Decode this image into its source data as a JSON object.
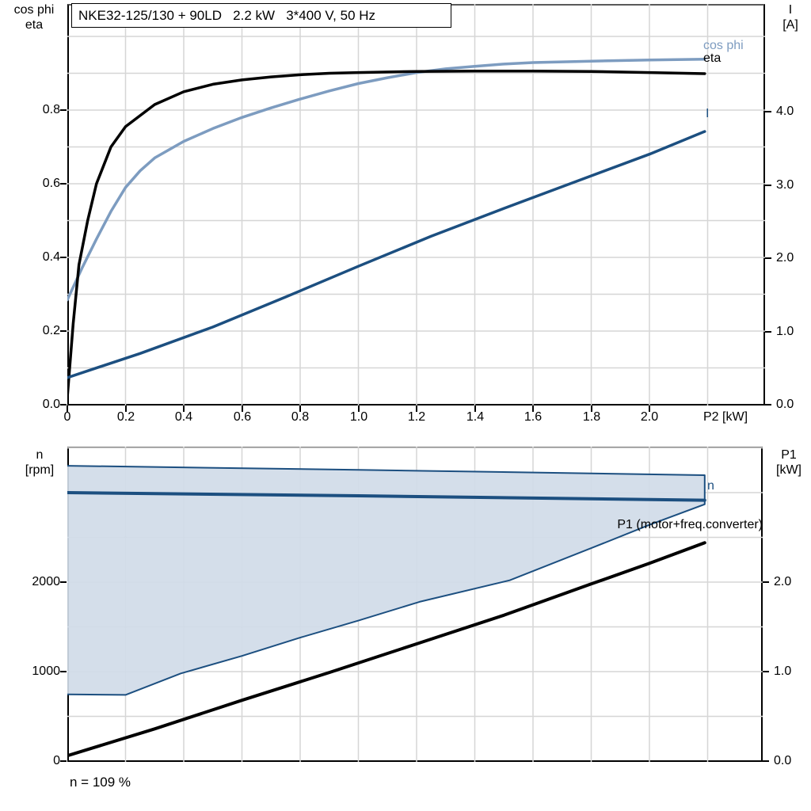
{
  "panel_title": "NKE32-125/130 + 90LD   2.2 kW   3*400 V, 50 Hz",
  "colors": {
    "cos_phi": "#7d9cc0",
    "eta": "#000000",
    "current": "#1c4f80",
    "speed_band_fill": "#d0dbe8",
    "speed_band_border": "#1c4f80",
    "p1_line": "#000000",
    "grid": "#d6d6d6",
    "frame_top": "#595959",
    "axis": "#000000"
  },
  "top_chart": {
    "left_axis_title": [
      "cos phi",
      "eta"
    ],
    "right_axis_title": [
      "I",
      "[A]"
    ],
    "x_axis_title": "P2 [kW]",
    "legend": {
      "cos_phi": "cos phi",
      "eta": "eta",
      "current": "I"
    }
  },
  "bottom_chart": {
    "left_axis_title": [
      "n",
      "[rpm]"
    ],
    "right_axis_title": [
      "P1",
      "[kW]"
    ],
    "series_label_n": "n",
    "series_label_p1": "P1 (motor+freq.converter)",
    "caption": "n = 109 %"
  },
  "chart_data": [
    {
      "type": "line",
      "title": "NKE32-125/130 + 90LD   2.2 kW   3*400 V, 50 Hz",
      "xlabel": "P2 [kW]",
      "x_range": [
        0,
        2.4
      ],
      "x_ticks": [
        {
          "v": 0,
          "label": "0"
        },
        {
          "v": 0.2,
          "label": "0.2"
        },
        {
          "v": 0.4,
          "label": "0.4"
        },
        {
          "v": 0.6,
          "label": "0.6"
        },
        {
          "v": 0.8,
          "label": "0.8"
        },
        {
          "v": 1.0,
          "label": "1.0"
        },
        {
          "v": 1.2,
          "label": "1.2"
        },
        {
          "v": 1.4,
          "label": "1.4"
        },
        {
          "v": 1.6,
          "label": "1.6"
        },
        {
          "v": 1.8,
          "label": "1.8"
        },
        {
          "v": 2.0,
          "label": "2.0"
        }
      ],
      "x_grid_step": 0.2,
      "left_axis": {
        "label": "cos phi / eta",
        "range": [
          0,
          1.088
        ],
        "grid_step": 0.1,
        "ticks": [
          {
            "v": 0.0,
            "label": "0.0"
          },
          {
            "v": 0.2,
            "label": "0.2"
          },
          {
            "v": 0.4,
            "label": "0.4"
          },
          {
            "v": 0.6,
            "label": "0.6"
          },
          {
            "v": 0.8,
            "label": "0.8"
          }
        ]
      },
      "right_axis": {
        "label": "I [A]",
        "range": [
          0,
          5.47
        ],
        "ticks": [
          {
            "v": 0.0,
            "label": "0.0"
          },
          {
            "v": 1.0,
            "label": "1.0"
          },
          {
            "v": 2.0,
            "label": "2.0"
          },
          {
            "v": 3.0,
            "label": "3.0"
          },
          {
            "v": 4.0,
            "label": "4.0"
          }
        ]
      },
      "series": [
        {
          "name": "cos phi",
          "axis": "left",
          "color": "#7d9cc0",
          "width": 3.5,
          "points": [
            [
              0,
              0.285
            ],
            [
              0.05,
              0.37
            ],
            [
              0.1,
              0.45
            ],
            [
              0.15,
              0.525
            ],
            [
              0.2,
              0.59
            ],
            [
              0.25,
              0.635
            ],
            [
              0.3,
              0.67
            ],
            [
              0.4,
              0.715
            ],
            [
              0.5,
              0.75
            ],
            [
              0.6,
              0.78
            ],
            [
              0.7,
              0.806
            ],
            [
              0.8,
              0.83
            ],
            [
              0.9,
              0.852
            ],
            [
              1.0,
              0.872
            ],
            [
              1.1,
              0.888
            ],
            [
              1.2,
              0.902
            ],
            [
              1.3,
              0.912
            ],
            [
              1.4,
              0.919
            ],
            [
              1.5,
              0.925
            ],
            [
              1.6,
              0.929
            ],
            [
              1.8,
              0.933
            ],
            [
              2.0,
              0.936
            ],
            [
              2.19,
              0.938
            ]
          ]
        },
        {
          "name": "eta",
          "axis": "left",
          "color": "#000000",
          "width": 3.5,
          "points": [
            [
              0,
              0.02
            ],
            [
              0.02,
              0.22
            ],
            [
              0.04,
              0.38
            ],
            [
              0.07,
              0.5
            ],
            [
              0.1,
              0.6
            ],
            [
              0.15,
              0.7
            ],
            [
              0.2,
              0.755
            ],
            [
              0.3,
              0.815
            ],
            [
              0.4,
              0.85
            ],
            [
              0.5,
              0.87
            ],
            [
              0.6,
              0.882
            ],
            [
              0.7,
              0.89
            ],
            [
              0.8,
              0.896
            ],
            [
              0.9,
              0.9
            ],
            [
              1.0,
              0.902
            ],
            [
              1.2,
              0.905
            ],
            [
              1.4,
              0.906
            ],
            [
              1.6,
              0.906
            ],
            [
              1.8,
              0.905
            ],
            [
              2.0,
              0.902
            ],
            [
              2.19,
              0.899
            ]
          ]
        },
        {
          "name": "I",
          "axis": "right",
          "color": "#1c4f80",
          "width": 3.5,
          "points": [
            [
              0,
              0.37
            ],
            [
              0.25,
              0.7
            ],
            [
              0.5,
              1.06
            ],
            [
              0.75,
              1.47
            ],
            [
              1.0,
              1.89
            ],
            [
              1.25,
              2.3
            ],
            [
              1.5,
              2.68
            ],
            [
              1.75,
              3.05
            ],
            [
              2.0,
              3.42
            ],
            [
              2.19,
              3.73
            ]
          ]
        }
      ]
    },
    {
      "type": "line",
      "xlabel": "P2 [kW]",
      "x_range": [
        0,
        2.39
      ],
      "x_grid_step": 0.2,
      "left_axis": {
        "label": "n [rpm]",
        "range": [
          0,
          3513
        ],
        "grid_step": 500,
        "ticks": [
          {
            "v": 0,
            "label": "0"
          },
          {
            "v": 1000,
            "label": "1000"
          },
          {
            "v": 2000,
            "label": "2000"
          }
        ]
      },
      "right_axis": {
        "label": "P1 [kW]",
        "range": [
          0,
          3.513
        ],
        "ticks": [
          {
            "v": 0.0,
            "label": "0.0"
          },
          {
            "v": 1.0,
            "label": "1.0"
          },
          {
            "v": 2.0,
            "label": "2.0"
          }
        ]
      },
      "band": {
        "name": "n operating range",
        "fill": "#d0dbe8",
        "border": "#1c4f80",
        "upper": [
          [
            0,
            3300
          ],
          [
            1.0,
            3255
          ],
          [
            2.19,
            3195
          ]
        ],
        "lower": [
          [
            0,
            745
          ],
          [
            0.2,
            740
          ],
          [
            0.39,
            980
          ],
          [
            0.6,
            1175
          ],
          [
            0.8,
            1380
          ],
          [
            1.0,
            1570
          ],
          [
            1.21,
            1780
          ],
          [
            1.52,
            2020
          ],
          [
            1.8,
            2380
          ],
          [
            2.0,
            2640
          ],
          [
            2.19,
            2870
          ]
        ]
      },
      "series": [
        {
          "name": "n",
          "axis": "left",
          "color": "#1c4f80",
          "width": 4,
          "points": [
            [
              0,
              3000
            ],
            [
              1.0,
              2965
            ],
            [
              2.19,
              2915
            ]
          ]
        },
        {
          "name": "P1 (motor+freq.converter)",
          "axis": "right",
          "color": "#000000",
          "width": 4,
          "points": [
            [
              0,
              0.06
            ],
            [
              0.3,
              0.36
            ],
            [
              0.6,
              0.68
            ],
            [
              0.9,
              0.99
            ],
            [
              1.2,
              1.31
            ],
            [
              1.5,
              1.63
            ],
            [
              1.8,
              1.98
            ],
            [
              2.0,
              2.21
            ],
            [
              2.19,
              2.44
            ]
          ]
        }
      ],
      "caption": "n = 109 %"
    }
  ]
}
